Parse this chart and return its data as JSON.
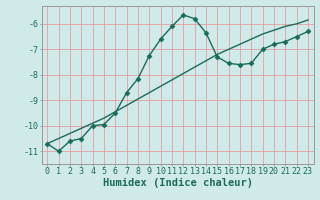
{
  "xlabel": "Humidex (Indice chaleur)",
  "bg_color": "#d0eaea",
  "grid_color": "#e89090",
  "line_color": "#1a6b5a",
  "x_wavy": [
    0,
    1,
    2,
    3,
    4,
    5,
    6,
    7,
    8,
    9,
    10,
    11,
    12,
    13,
    14,
    15,
    16,
    17,
    18,
    19,
    20,
    21,
    22,
    23
  ],
  "y_wavy": [
    -10.7,
    -11.0,
    -10.6,
    -10.5,
    -10.0,
    -9.95,
    -9.5,
    -8.7,
    -8.15,
    -7.25,
    -6.6,
    -6.1,
    -5.65,
    -5.8,
    -6.35,
    -7.3,
    -7.55,
    -7.6,
    -7.55,
    -7.0,
    -6.8,
    -6.7,
    -6.5,
    -6.3
  ],
  "x_linear": [
    0,
    1,
    2,
    3,
    4,
    5,
    6,
    7,
    8,
    9,
    10,
    11,
    12,
    13,
    14,
    15,
    16,
    17,
    18,
    19,
    20,
    21,
    22,
    23
  ],
  "y_linear": [
    -10.7,
    -10.5,
    -10.3,
    -10.1,
    -9.9,
    -9.7,
    -9.45,
    -9.2,
    -8.95,
    -8.7,
    -8.45,
    -8.2,
    -7.95,
    -7.7,
    -7.45,
    -7.2,
    -7.0,
    -6.8,
    -6.6,
    -6.4,
    -6.25,
    -6.1,
    -6.0,
    -5.85
  ],
  "xlim": [
    -0.5,
    23.5
  ],
  "ylim": [
    -11.5,
    -5.3
  ],
  "yticks": [
    -6,
    -7,
    -8,
    -9,
    -10,
    -11
  ],
  "xticks": [
    0,
    1,
    2,
    3,
    4,
    5,
    6,
    7,
    8,
    9,
    10,
    11,
    12,
    13,
    14,
    15,
    16,
    17,
    18,
    19,
    20,
    21,
    22,
    23
  ],
  "marker": "D",
  "markersize": 2.5,
  "linewidth": 1.0,
  "tick_fontsize": 6.0,
  "xlabel_fontsize": 7.5
}
